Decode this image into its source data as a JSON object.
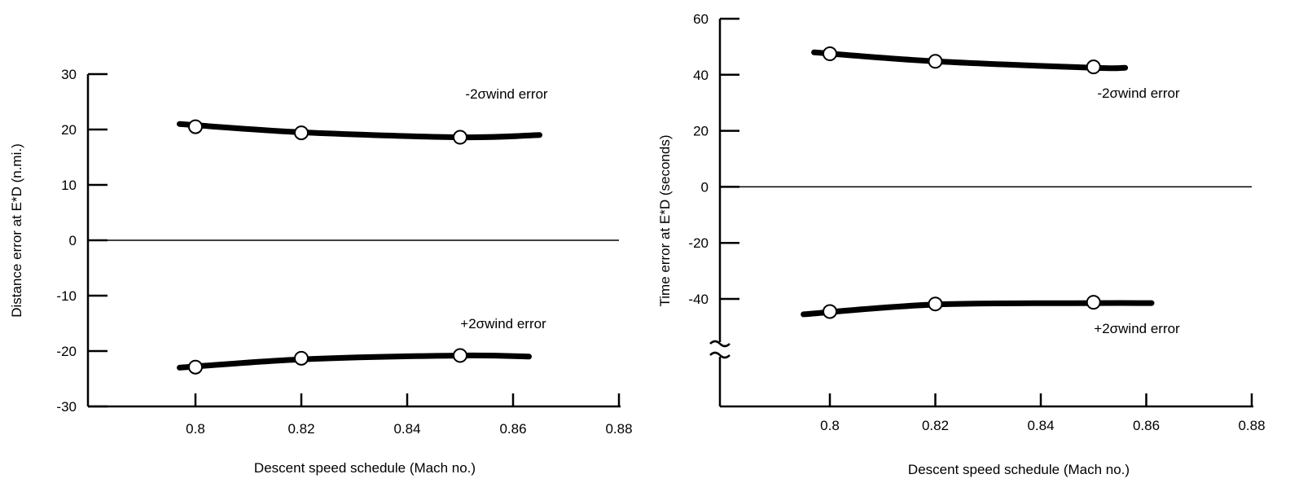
{
  "chart_data": [
    {
      "type": "line",
      "xlabel": "Descent speed schedule (Mach no.)",
      "ylabel": "Distance error at E*D (n.mi.)",
      "xlim": [
        0.78,
        0.88
      ],
      "ylim": [
        -30,
        30
      ],
      "x_ticks": [
        0.8,
        0.82,
        0.84,
        0.86,
        0.88
      ],
      "x_tick_labels": [
        "0.8",
        "0.82",
        "0.84",
        "0.86",
        "0.88"
      ],
      "y_ticks": [
        30,
        20,
        10,
        0,
        -10,
        -20,
        -30
      ],
      "y_tick_labels": [
        "30",
        "20",
        "10",
        "0",
        "-10",
        "-20",
        "-30"
      ],
      "reference_line_y": 0,
      "series": [
        {
          "label": "-2σwind error",
          "curve_x": [
            0.797,
            0.82,
            0.85,
            0.865
          ],
          "curve_y": [
            21,
            19.5,
            18.6,
            19
          ],
          "points_x": [
            0.8,
            0.82,
            0.85
          ],
          "points_y": [
            20.5,
            19.4,
            18.6
          ]
        },
        {
          "label": "+2σwind error",
          "curve_x": [
            0.797,
            0.82,
            0.85,
            0.863
          ],
          "curve_y": [
            -23,
            -21.5,
            -20.8,
            -21
          ],
          "points_x": [
            0.8,
            0.82,
            0.85
          ],
          "points_y": [
            -22.9,
            -21.3,
            -20.8
          ]
        }
      ]
    },
    {
      "type": "line",
      "xlabel": "Descent speed schedule (Mach no.)",
      "ylabel": "Time error at E*D (seconds)",
      "xlim": [
        0.78,
        0.88
      ],
      "ylim": [
        -80,
        60
      ],
      "axis_break": true,
      "x_ticks": [
        0.8,
        0.82,
        0.84,
        0.86,
        0.88
      ],
      "x_tick_labels": [
        "0.8",
        "0.82",
        "0.84",
        "0.86",
        "0.88"
      ],
      "y_ticks": [
        60,
        40,
        20,
        0,
        -20,
        -40
      ],
      "y_tick_labels": [
        "60",
        "40",
        "20",
        "0",
        "-20",
        "-40"
      ],
      "reference_line_y": 0,
      "series": [
        {
          "label": "-2σwind error",
          "curve_x": [
            0.797,
            0.82,
            0.85,
            0.856
          ],
          "curve_y": [
            48,
            44.8,
            42.5,
            42.5
          ],
          "points_x": [
            0.8,
            0.82,
            0.85
          ],
          "points_y": [
            47.5,
            44.8,
            42.8
          ]
        },
        {
          "label": "+2σwind error",
          "curve_x": [
            0.795,
            0.82,
            0.85,
            0.861
          ],
          "curve_y": [
            -45.5,
            -42,
            -41.5,
            -41.5
          ],
          "points_x": [
            0.8,
            0.82,
            0.85
          ],
          "points_y": [
            -44.5,
            -41.8,
            -41.2
          ]
        }
      ]
    }
  ]
}
